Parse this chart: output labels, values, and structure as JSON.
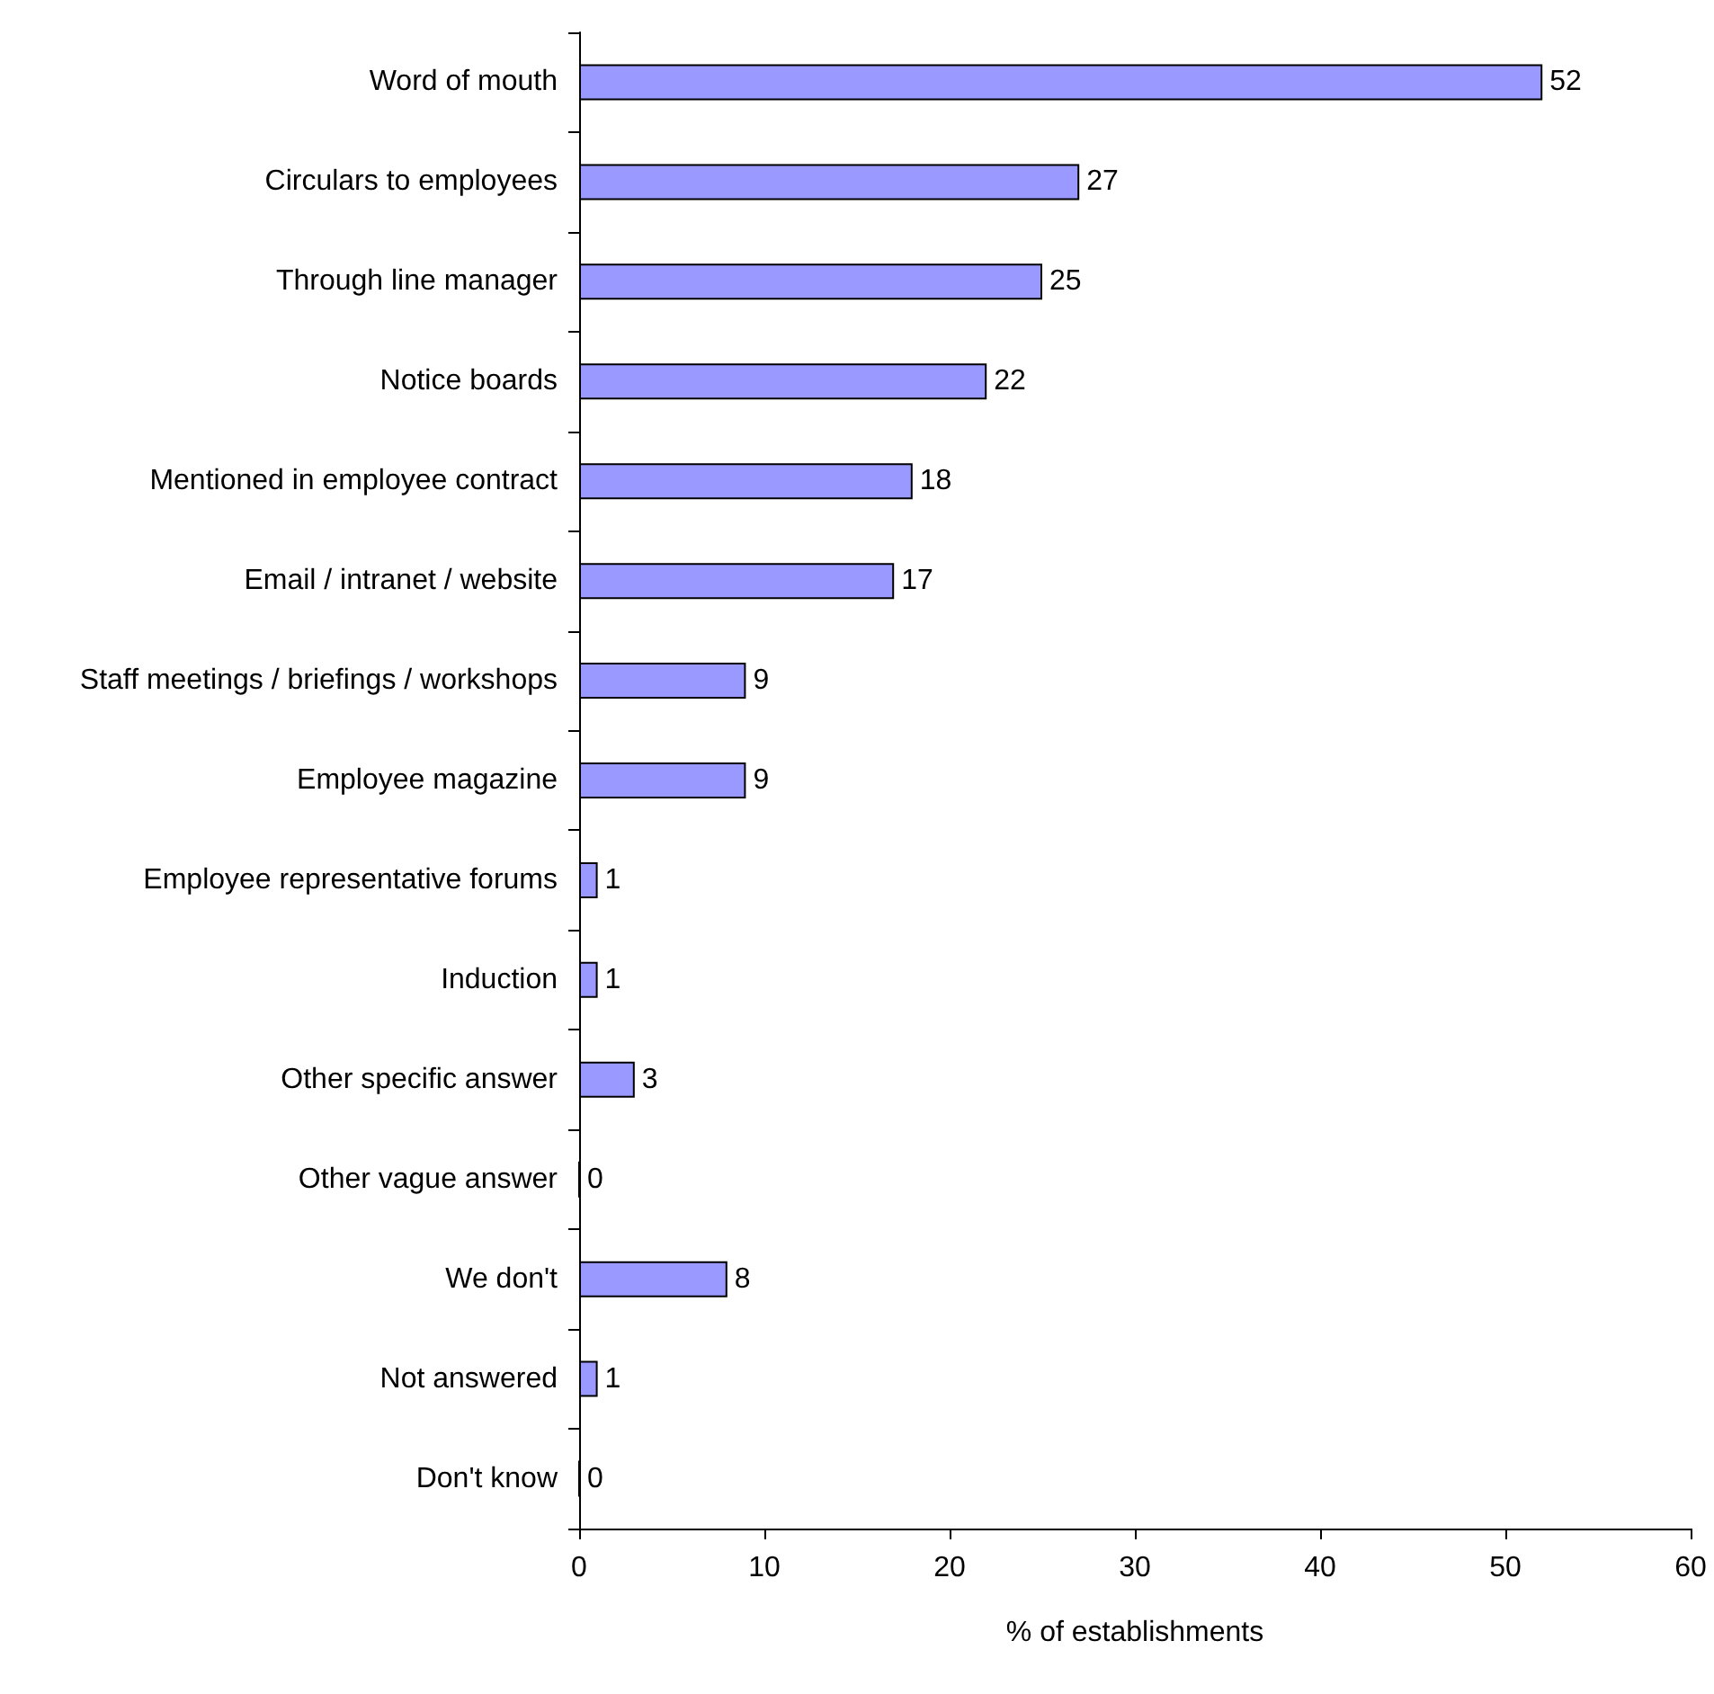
{
  "chart_data": {
    "type": "bar",
    "orientation": "horizontal",
    "categories": [
      "Word of mouth",
      "Circulars to employees",
      "Through line manager",
      "Notice boards",
      "Mentioned in employee contract",
      "Email / intranet / website",
      "Staff meetings / briefings / workshops",
      "Employee magazine",
      "Employee representative forums",
      "Induction",
      "Other specific answer",
      "Other vague answer",
      "We don't",
      "Not answered",
      "Don't know"
    ],
    "values": [
      52,
      27,
      25,
      22,
      18,
      17,
      9,
      9,
      1,
      1,
      3,
      0,
      8,
      1,
      0
    ],
    "color": "#9999ff",
    "xlim": [
      0,
      60
    ],
    "xticks": [
      0,
      10,
      20,
      30,
      40,
      50,
      60
    ],
    "xlabel": "% of establishments",
    "data_labels": true,
    "grid": false
  }
}
